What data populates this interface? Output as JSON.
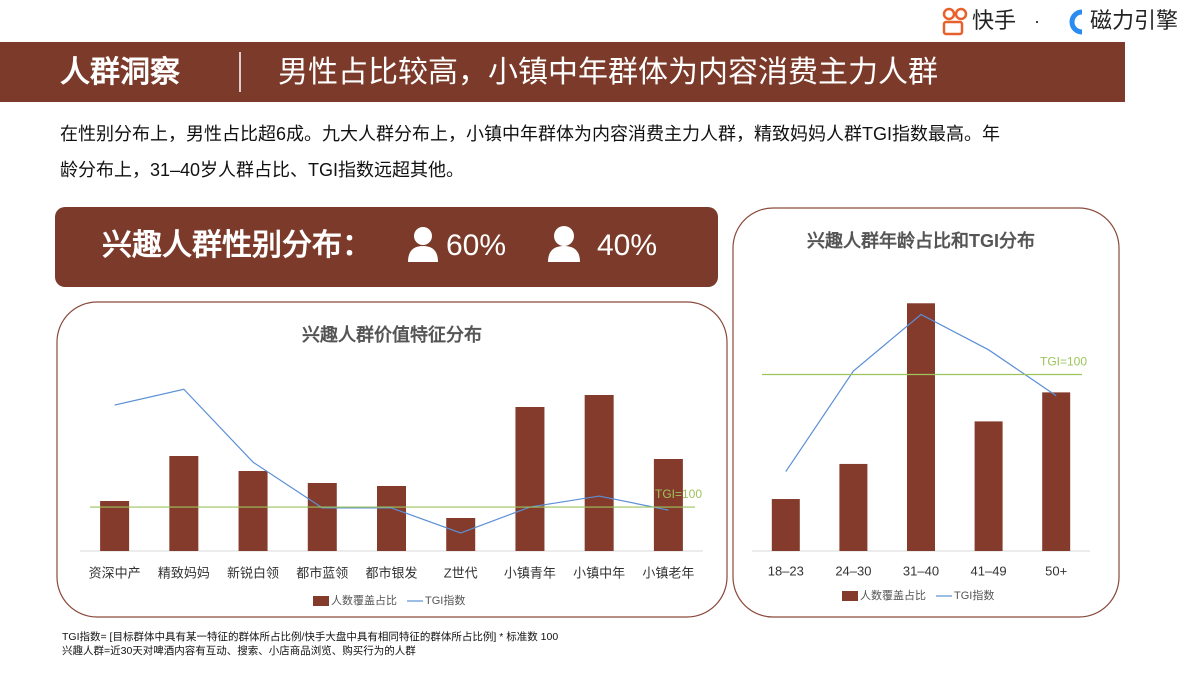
{
  "logo": {
    "brand": "快手",
    "separator": "·",
    "product": "磁力引擎"
  },
  "header": {
    "title": "人群洞察",
    "subtitle": "男性占比较高，小镇中年群体为内容消费主力人群"
  },
  "intro": [
    "在性别分布上，男性占比超6成。九大人群分布上，小镇中年群体为内容消费主力人群，精致妈妈人群TGI指数最高。年",
    "龄分布上，31–40岁人群占比、TGI指数远超其他。"
  ],
  "gender": {
    "title": "兴趣人群性别分布：",
    "male": "60%",
    "female": "40%"
  },
  "footnotes": [
    "TGI指数= [目标群体中具有某一特征的群体所占比例/快手大盘中具有相同特征的群体所占比例] * 标准数 100",
    "兴趣人群=近30天对啤酒内容有互动、搜索、小店商品浏览、购买行为的人群"
  ],
  "chart_data": [
    {
      "type": "bar-line",
      "title": "兴趣人群价值特征分布",
      "categories": [
        "资深中产",
        "精致妈妈",
        "新锐白领",
        "都市蓝领",
        "都市银发",
        "Z世代",
        "小镇青年",
        "小镇中年",
        "小镇老年"
      ],
      "series": [
        {
          "name": "人数覆盖占比",
          "color": "#843b2c",
          "values": [
            5.0,
            9.5,
            8.0,
            6.8,
            6.5,
            3.3,
            14.4,
            15.6,
            9.2
          ]
        },
        {
          "name": "TGI指数",
          "color": "#5b8fd6",
          "axis": "y2",
          "values": [
            332,
            368,
            202,
            98,
            98,
            41,
            100,
            125,
            93
          ]
        }
      ],
      "reference": {
        "value": 100,
        "label": "TGI=100",
        "axis": "y2",
        "color": "#9dc35b"
      },
      "ylim": [
        0,
        20
      ],
      "y2lim": [
        0,
        455
      ]
    },
    {
      "type": "bar-line",
      "title": "兴趣人群年龄占比和TGI分布",
      "categories": [
        "18–23",
        "24–30",
        "31–40",
        "41–49",
        "50+"
      ],
      "series": [
        {
          "name": "人数覆盖占比",
          "color": "#843b2c",
          "values": [
            7.7,
            12.9,
            36.7,
            19.2,
            23.5
          ]
        },
        {
          "name": "TGI指数",
          "color": "#5b8fd6",
          "axis": "y2",
          "values": [
            45,
            102,
            134,
            114,
            88
          ]
        }
      ],
      "reference": {
        "value": 100,
        "label": "TGI=100",
        "axis": "y2",
        "color": "#9dc35b"
      },
      "ylim": [
        0,
        40
      ],
      "y2lim": [
        0,
        153
      ]
    }
  ]
}
